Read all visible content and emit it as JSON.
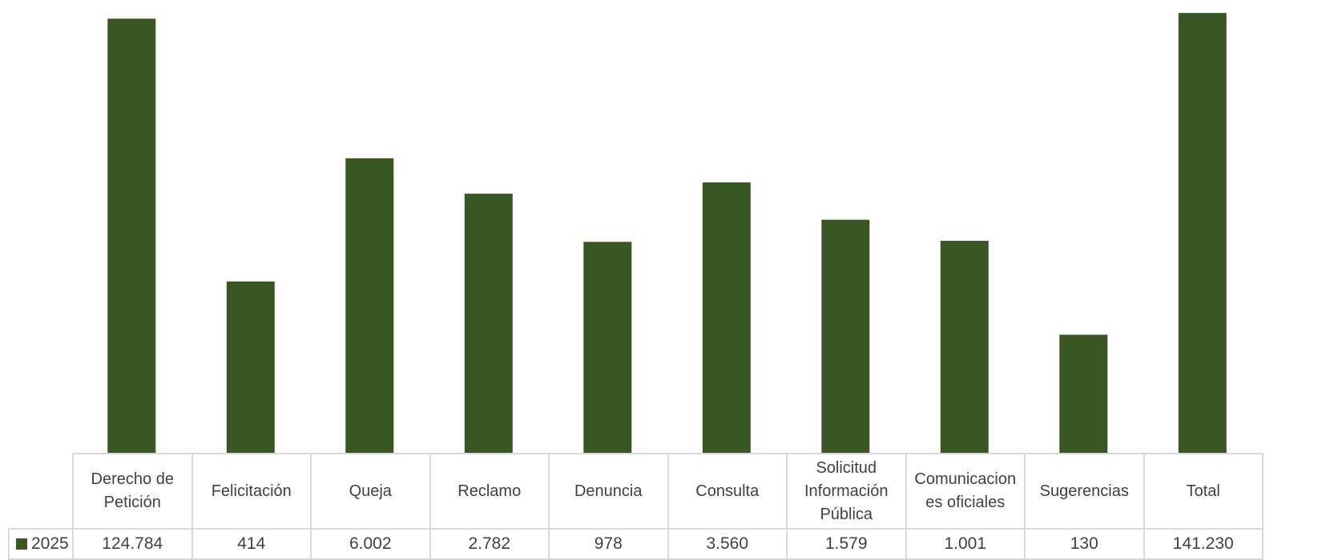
{
  "chart_data": {
    "type": "bar",
    "categories": [
      "Derecho de Petición",
      "Felicitación",
      "Queja",
      "Reclamo",
      "Denuncia",
      "Consulta",
      "Solicitud Información Pública",
      "Comunicaciones oficiales",
      "Sugerencias",
      "Total"
    ],
    "category_lines": [
      [
        "Derecho de",
        "Petición"
      ],
      [
        "Felicitación"
      ],
      [
        "Queja"
      ],
      [
        "Reclamo"
      ],
      [
        "Denuncia"
      ],
      [
        "Consulta"
      ],
      [
        "Solicitud",
        "Información",
        "Pública"
      ],
      [
        "Comunicacion",
        "es oficiales"
      ],
      [
        "Sugerencias"
      ],
      [
        "Total"
      ]
    ],
    "series": [
      {
        "name": "2025",
        "color": "#3a5723",
        "values": [
          124784,
          414,
          6002,
          2782,
          978,
          3560,
          1579,
          1001,
          130,
          141230
        ],
        "value_labels": [
          "124.784",
          "414",
          "6.002",
          "2.782",
          "978",
          "3.560",
          "1.579",
          "1.001",
          "130",
          "141.230"
        ]
      }
    ],
    "yscale": "log",
    "ylim": [
      10,
      160000
    ],
    "grid": false,
    "legend": "data-table"
  }
}
